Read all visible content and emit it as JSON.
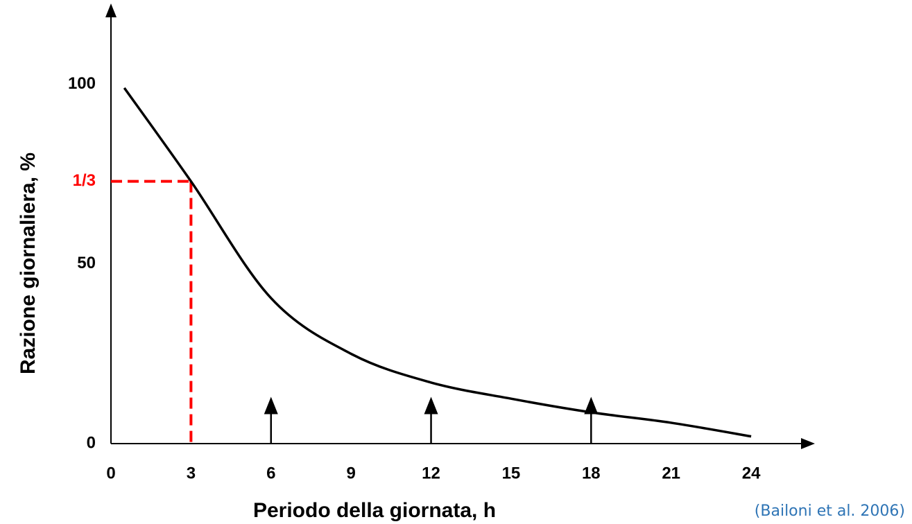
{
  "chart_data": {
    "type": "line",
    "x_label": "Periodo della giornata, h",
    "y_label": "Razione giornaliera, %",
    "source": "(Bailoni et al. 2006)",
    "x": [
      0.5,
      3,
      6,
      9,
      12,
      15,
      18,
      21,
      24
    ],
    "series": [
      {
        "name": "Razione",
        "color": "#000000",
        "values": [
          99,
          73,
          40.5,
          25,
          17,
          12.5,
          8.7,
          5.8,
          2
        ]
      }
    ],
    "xlim": [
      0,
      26
    ],
    "ylim": [
      0,
      120
    ],
    "xticks": [
      0,
      3,
      6,
      9,
      12,
      15,
      18,
      21,
      24
    ],
    "yticks": [
      0,
      {
        "value": 73,
        "label": "1/3"
      },
      50,
      100
    ],
    "highlight_color": "#ff0000",
    "arrows_x": [
      6,
      12,
      18
    ],
    "grid": false
  }
}
